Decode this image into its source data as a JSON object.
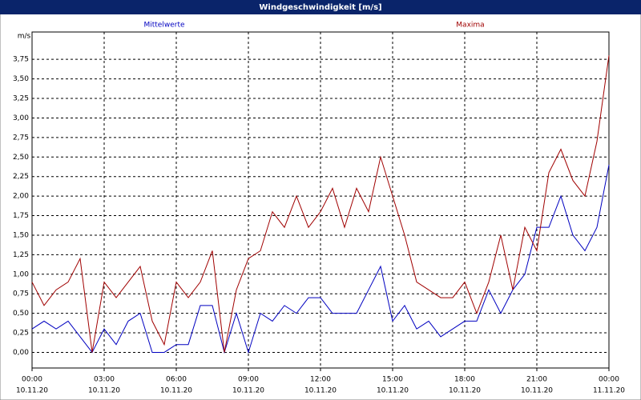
{
  "chart_data": {
    "type": "line",
    "title": "Windgeschwindigkeit [m/s]",
    "y_label": "m/s",
    "x": [
      0,
      0.5,
      1,
      1.5,
      2,
      2.5,
      3,
      3.5,
      4,
      4.5,
      5,
      5.5,
      6,
      6.5,
      7,
      7.5,
      8,
      8.5,
      9,
      9.5,
      10,
      10.5,
      11,
      11.5,
      12,
      12.5,
      13,
      13.5,
      14,
      14.5,
      15,
      15.5,
      16,
      16.5,
      17,
      17.5,
      18,
      18.5,
      19,
      19.5,
      20,
      20.5,
      21,
      21.5,
      22,
      22.5,
      23,
      23.5,
      24
    ],
    "series": [
      {
        "name": "Mittelwerte",
        "color": "#0000c0",
        "values": [
          0.3,
          0.4,
          0.3,
          0.4,
          0.2,
          0.0,
          0.3,
          0.1,
          0.4,
          0.5,
          0.0,
          0.0,
          0.1,
          0.1,
          0.6,
          0.6,
          0.0,
          0.5,
          0.0,
          0.5,
          0.4,
          0.6,
          0.5,
          0.7,
          0.7,
          0.5,
          0.5,
          0.5,
          0.8,
          1.1,
          0.4,
          0.6,
          0.3,
          0.4,
          0.2,
          0.3,
          0.4,
          0.4,
          0.8,
          0.5,
          0.8,
          1.0,
          1.6,
          1.6,
          2.0,
          1.5,
          1.3,
          1.6,
          2.4
        ]
      },
      {
        "name": "Maxima",
        "color": "#a00000",
        "values": [
          0.9,
          0.6,
          0.8,
          0.9,
          1.2,
          0.0,
          0.9,
          0.7,
          0.9,
          1.1,
          0.4,
          0.1,
          0.9,
          0.7,
          0.9,
          1.3,
          0.0,
          0.8,
          1.2,
          1.3,
          1.8,
          1.6,
          2.0,
          1.6,
          1.8,
          2.1,
          1.6,
          2.1,
          1.8,
          2.5,
          2.0,
          1.5,
          0.9,
          0.8,
          0.7,
          0.7,
          0.9,
          0.5,
          0.9,
          1.5,
          0.8,
          1.6,
          1.3,
          2.3,
          2.6,
          2.2,
          2.0,
          2.7,
          3.8
        ]
      }
    ],
    "xlim": [
      0,
      24
    ],
    "xticks": [
      {
        "value": 0,
        "label": "00:00"
      },
      {
        "value": 3,
        "label": "03:00"
      },
      {
        "value": 6,
        "label": "06:00"
      },
      {
        "value": 9,
        "label": "09:00"
      },
      {
        "value": 12,
        "label": "12:00"
      },
      {
        "value": 15,
        "label": "15:00"
      },
      {
        "value": 18,
        "label": "18:00"
      },
      {
        "value": 21,
        "label": "21:00"
      },
      {
        "value": 24,
        "label": "00:00"
      }
    ],
    "xtick_dates": [
      "10.11.20",
      "10.11.20",
      "10.11.20",
      "10.11.20",
      "10.11.20",
      "10.11.20",
      "10.11.20",
      "10.11.20",
      "11.11.20"
    ],
    "ylim": [
      -0.2,
      4.1
    ],
    "yticks": [
      {
        "value": 0,
        "label": "0,00"
      },
      {
        "value": 0.25,
        "label": "0,25"
      },
      {
        "value": 0.5,
        "label": "0,50"
      },
      {
        "value": 0.75,
        "label": "0,75"
      },
      {
        "value": 1,
        "label": "1,00"
      },
      {
        "value": 1.25,
        "label": "1,25"
      },
      {
        "value": 1.5,
        "label": "1,50"
      },
      {
        "value": 1.75,
        "label": "1,75"
      },
      {
        "value": 2,
        "label": "2,00"
      },
      {
        "value": 2.25,
        "label": "2,25"
      },
      {
        "value": 2.5,
        "label": "2,50"
      },
      {
        "value": 2.75,
        "label": "2,75"
      },
      {
        "value": 3,
        "label": "3,00"
      },
      {
        "value": 3.25,
        "label": "3,25"
      },
      {
        "value": 3.5,
        "label": "3,50"
      },
      {
        "value": 3.75,
        "label": "3,75"
      }
    ],
    "grid": true
  }
}
